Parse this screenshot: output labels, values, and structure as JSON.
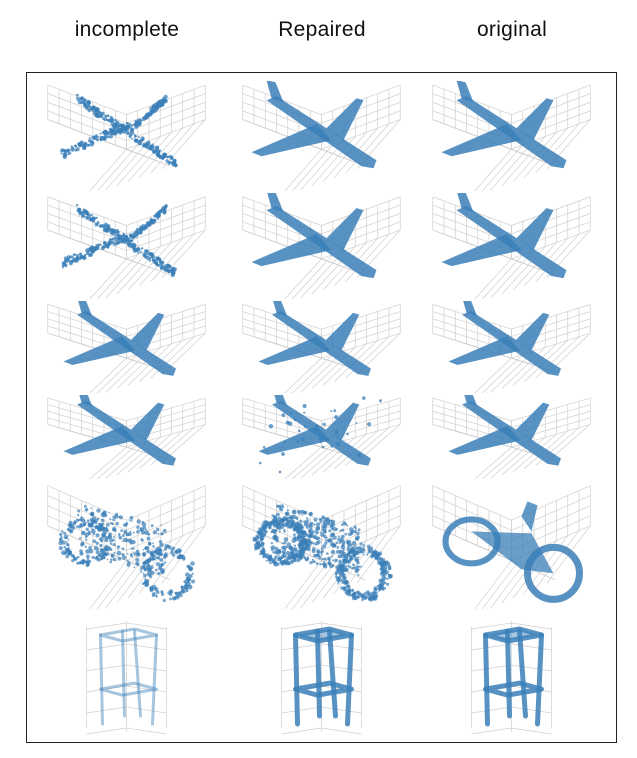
{
  "columns": [
    {
      "key": "incomplete",
      "label": "incomplete"
    },
    {
      "key": "repaired",
      "label": "Repaired"
    },
    {
      "key": "original",
      "label": "original"
    }
  ],
  "rows": [
    {
      "object": "airplane",
      "cells": [
        "scattered",
        "solid",
        "solid"
      ]
    },
    {
      "object": "airplane",
      "cells": [
        "scattered",
        "solid",
        "solid"
      ]
    },
    {
      "object": "airplane",
      "cells": [
        "solid",
        "solid",
        "solid"
      ]
    },
    {
      "object": "airplane",
      "cells": [
        "solid",
        "noisy",
        "solid"
      ]
    },
    {
      "object": "motorcycle",
      "cells": [
        "scattered",
        "dense",
        "solid"
      ]
    },
    {
      "object": "table",
      "cells": [
        "faint",
        "solid",
        "solid"
      ]
    }
  ],
  "colors": {
    "point": "#3a7fb8",
    "grid": "#cfcfcf",
    "frame": "#222222"
  }
}
